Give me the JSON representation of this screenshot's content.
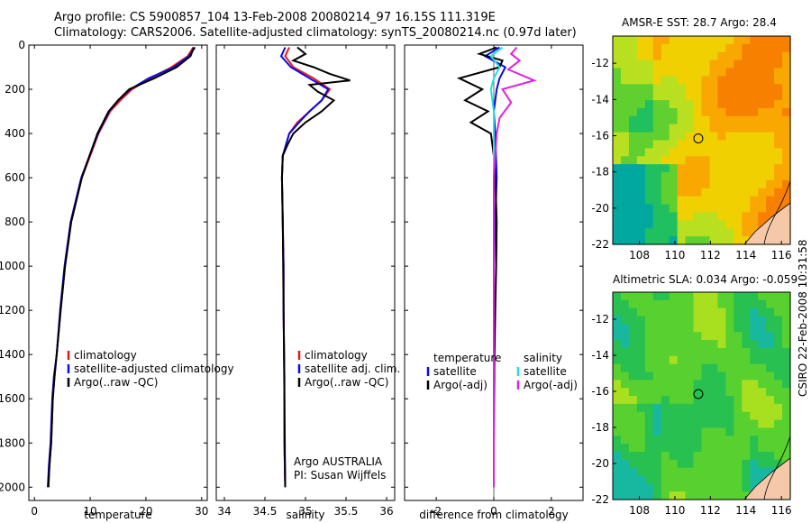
{
  "figure": {
    "title_line1": "Argo profile: CS 5900857_104 13-Feb-2008 20080214_97 16.15S 111.319E",
    "title_line2": "Climatology: CARS2006. Satellite-adjusted climatology: synTS_20080214.nc (0.97d later)",
    "footer_stamp": "CSIRO 22-Feb-2008 10:31:58"
  },
  "colors": {
    "climatology": "#e8141b",
    "satellite": "#0a0ae6",
    "argo": "#000000",
    "sat_salinity": "#22e0e0",
    "argo_salinity": "#e020e0"
  },
  "chart_data": [
    {
      "type": "line",
      "xlabel": "temperature",
      "ylabel": "",
      "xlim": [
        -1,
        31
      ],
      "ylim": [
        2060,
        0
      ],
      "xticks": [
        0,
        10,
        20,
        30
      ],
      "yticks": [
        0,
        200,
        400,
        600,
        800,
        1000,
        1200,
        1400,
        1600,
        1800,
        2000
      ],
      "series": [
        {
          "name": "climatology",
          "color": "#e8141b",
          "x": [
            28.5,
            27.5,
            24.6,
            20.8,
            17.5,
            15.4,
            13.6,
            11.5,
            10.0,
            8.5,
            6.6,
            5.5,
            4.7,
            4.0,
            3.6,
            3.3,
            3.0,
            2.7,
            2.5
          ],
          "y": [
            10,
            50,
            100,
            150,
            200,
            250,
            300,
            400,
            500,
            600,
            800,
            1000,
            1200,
            1400,
            1500,
            1600,
            1800,
            1900,
            2000
          ]
        },
        {
          "name": "satellite-adjusted climatology",
          "color": "#0a0ae6",
          "x": [
            28.8,
            27.7,
            25.0,
            20.5,
            17.2,
            15.0,
            13.4,
            11.4,
            9.9,
            8.4,
            6.5,
            5.4,
            4.6,
            4.0,
            3.5,
            3.2,
            2.9,
            2.6,
            2.4
          ],
          "y": [
            10,
            50,
            100,
            150,
            200,
            250,
            300,
            400,
            500,
            600,
            800,
            1000,
            1200,
            1400,
            1500,
            1600,
            1800,
            1900,
            2000
          ]
        },
        {
          "name": "Argo(..raw -QC)",
          "color": "#000000",
          "x": [
            28.6,
            28.0,
            25.5,
            21.5,
            17.0,
            15.0,
            13.3,
            11.3,
            9.9,
            8.5,
            6.6,
            5.5,
            4.7,
            4.0,
            3.6,
            3.3,
            3.0,
            2.7,
            2.5
          ],
          "y": [
            10,
            50,
            100,
            150,
            200,
            250,
            300,
            400,
            500,
            600,
            800,
            1000,
            1200,
            1400,
            1500,
            1600,
            1800,
            1900,
            2000
          ]
        }
      ],
      "legend": [
        {
          "label": "climatology",
          "color": "#e8141b"
        },
        {
          "label": "satellite-adjusted climatology",
          "color": "#0a0ae6"
        },
        {
          "label": "Argo(..raw -QC)",
          "color": "#000000"
        }
      ]
    },
    {
      "type": "line",
      "xlabel": "salinity",
      "xlim": [
        33.9,
        36.1
      ],
      "ylim": [
        2060,
        0
      ],
      "xticks": [
        34,
        34.5,
        35,
        35.5,
        36
      ],
      "xticklabels": [
        "34",
        "34.5",
        "35",
        "35.5",
        "36"
      ],
      "series": [
        {
          "name": "climatology",
          "color": "#e8141b",
          "x": [
            34.8,
            34.75,
            34.85,
            35.1,
            35.3,
            35.2,
            35.05,
            34.9,
            34.8,
            34.72,
            34.71,
            34.72,
            34.73,
            34.73,
            34.74,
            34.74,
            34.75
          ],
          "y": [
            10,
            50,
            100,
            150,
            200,
            250,
            300,
            350,
            400,
            500,
            600,
            800,
            1000,
            1200,
            1500,
            1800,
            2000
          ]
        },
        {
          "name": "satellite adj. clim.",
          "color": "#0a0ae6",
          "x": [
            34.75,
            34.7,
            34.82,
            35.05,
            35.28,
            35.2,
            35.05,
            34.92,
            34.8,
            34.72,
            34.71,
            34.72,
            34.73,
            34.73,
            34.74,
            34.74,
            34.75
          ],
          "y": [
            10,
            50,
            100,
            150,
            200,
            250,
            300,
            350,
            400,
            500,
            600,
            800,
            1000,
            1200,
            1500,
            1800,
            2000
          ]
        },
        {
          "name": "Argo(..raw -QC)",
          "color": "#000000",
          "x": [
            34.9,
            35.0,
            34.85,
            35.1,
            35.3,
            35.55,
            35.05,
            35.15,
            35.35,
            35.2,
            35.0,
            34.85,
            34.78,
            34.72,
            34.71,
            34.72,
            34.73,
            34.74,
            34.75
          ],
          "y": [
            10,
            40,
            70,
            100,
            130,
            160,
            180,
            210,
            250,
            300,
            350,
            400,
            450,
            500,
            600,
            800,
            1200,
            1600,
            2000
          ]
        }
      ],
      "legend": [
        {
          "label": "climatology",
          "color": "#e8141b"
        },
        {
          "label": "satellite adj. clim.",
          "color": "#0a0ae6"
        },
        {
          "label": "Argo(..raw -QC)",
          "color": "#000000"
        }
      ],
      "annotation": [
        "Argo AUSTRALIA",
        "PI: Susan Wijffels"
      ]
    },
    {
      "type": "line",
      "xlabel": "difference from climatology",
      "xlim": [
        -3.1,
        3.1
      ],
      "ylim": [
        2060,
        0
      ],
      "xticks": [
        -2,
        0,
        2
      ],
      "series": [
        {
          "name": "temperature satellite",
          "color": "#0a0ae6",
          "x": [
            0.2,
            -0.3,
            0.4,
            0.2,
            0.1,
            0.0,
            0.05,
            0.1,
            0.05,
            0.0,
            0.0,
            0.02,
            0.0,
            0.0
          ],
          "y": [
            10,
            50,
            100,
            150,
            200,
            300,
            400,
            600,
            800,
            1000,
            1200,
            1500,
            1800,
            2000
          ]
        },
        {
          "name": "temperature Argo(-adj)",
          "color": "#000000",
          "x": [
            0.1,
            -0.5,
            0.3,
            0.2,
            -1.2,
            -0.4,
            -1.0,
            -0.2,
            -0.8,
            -0.1,
            0.0,
            0.05,
            0.1,
            0.08,
            0.05,
            0.0,
            0.0
          ],
          "y": [
            10,
            40,
            70,
            100,
            150,
            200,
            250,
            300,
            350,
            400,
            500,
            600,
            800,
            1000,
            1200,
            1600,
            2000
          ]
        },
        {
          "name": "salinity satellite",
          "color": "#22e0e0",
          "x": [
            0.3,
            -0.1,
            0.2,
            0.0,
            -0.1,
            0.0,
            0.0,
            0.0,
            0.0,
            0.0
          ],
          "y": [
            10,
            50,
            100,
            150,
            200,
            300,
            500,
            1000,
            1500,
            2000
          ]
        },
        {
          "name": "salinity Argo(-adj)",
          "color": "#e020e0",
          "x": [
            0.8,
            0.6,
            0.9,
            0.5,
            1.4,
            0.3,
            0.6,
            0.2,
            0.1,
            0.0,
            0.0,
            0.0
          ],
          "y": [
            10,
            40,
            70,
            110,
            160,
            200,
            260,
            330,
            400,
            600,
            1000,
            2000
          ]
        }
      ],
      "legend_headers": [
        "temperature",
        "salinity"
      ],
      "legend": [
        {
          "label": "satellite",
          "color": "#0a0ae6"
        },
        {
          "label": "Argo(-adj)",
          "color": "#000000"
        },
        {
          "label": "satellite",
          "color": "#22e0e0"
        },
        {
          "label": "Argo(-adj)",
          "color": "#e020e0"
        }
      ]
    },
    {
      "type": "heatmap",
      "title": "AMSR-E SST: 28.7 Argo: 28.4",
      "xlim": [
        106.5,
        116.5
      ],
      "ylim": [
        -22,
        -10.5
      ],
      "xticks": [
        108,
        110,
        112,
        114,
        116
      ],
      "yticks": [
        -12,
        -14,
        -16,
        -18,
        -20,
        -22
      ],
      "marker": {
        "lon": 111.319,
        "lat": -16.15
      }
    },
    {
      "type": "heatmap",
      "title": "Altimetric SLA: 0.034 Argo: -0.059",
      "xlim": [
        106.5,
        116.5
      ],
      "ylim": [
        -22,
        -10.5
      ],
      "xticks": [
        108,
        110,
        112,
        114,
        116
      ],
      "yticks": [
        -12,
        -14,
        -16,
        -18,
        -20,
        -22
      ],
      "marker": {
        "lon": 111.319,
        "lat": -16.15
      }
    }
  ]
}
